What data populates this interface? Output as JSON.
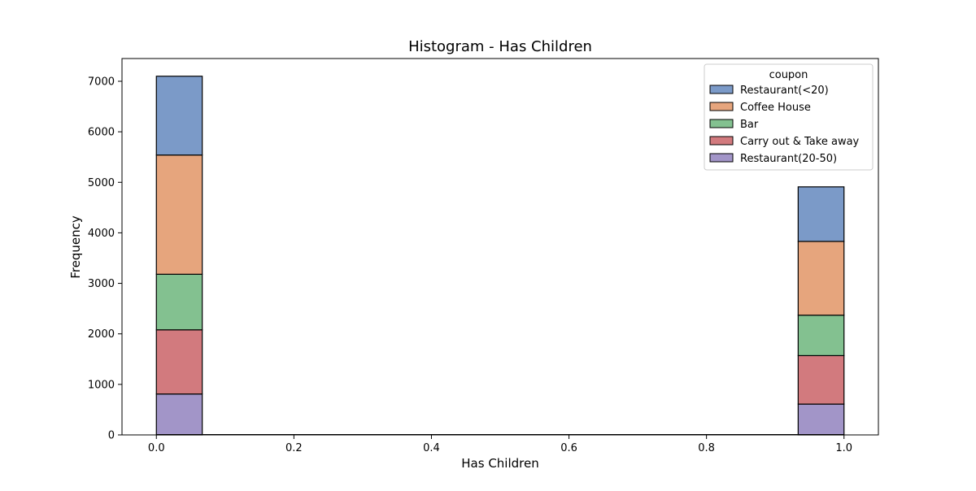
{
  "chart_data": {
    "type": "bar",
    "stacked": true,
    "title": "Histogram - Has Children",
    "xlabel": "Has Children",
    "ylabel": "Frequency",
    "xlim": [
      -0.05,
      1.05
    ],
    "ylim": [
      0,
      7450
    ],
    "bin_width": 0.0667,
    "x_ticks": [
      "0.0",
      "0.2",
      "0.4",
      "0.6",
      "0.8",
      "1.0"
    ],
    "y_ticks": [
      "0",
      "1000",
      "2000",
      "3000",
      "4000",
      "5000",
      "6000",
      "7000"
    ],
    "x_tick_values": [
      0.0,
      0.2,
      0.4,
      0.6,
      0.8,
      1.0
    ],
    "y_tick_values": [
      0,
      1000,
      2000,
      3000,
      4000,
      5000,
      6000,
      7000
    ],
    "categories": [
      0,
      1
    ],
    "series": [
      {
        "name": "Restaurant(20-50)",
        "color": "#a295c8",
        "values": [
          810,
          610
        ]
      },
      {
        "name": "Carry out & Take away",
        "color": "#d27a7e",
        "values": [
          1270,
          960
        ]
      },
      {
        "name": "Bar",
        "color": "#83c190",
        "values": [
          1100,
          800
        ]
      },
      {
        "name": "Coffee House",
        "color": "#e6a57d",
        "values": [
          2360,
          1460
        ]
      },
      {
        "name": "Restaurant(<20)",
        "color": "#7b9ac8",
        "values": [
          1560,
          1080
        ]
      }
    ],
    "legend": {
      "title": "coupon",
      "placement": "top-right",
      "order": [
        "Restaurant(<20)",
        "Coffee House",
        "Bar",
        "Carry out & Take away",
        "Restaurant(20-50)"
      ]
    },
    "grid": false
  }
}
